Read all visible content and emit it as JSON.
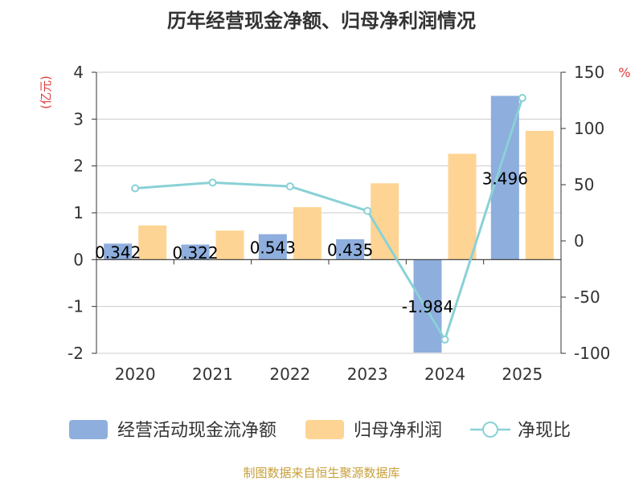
{
  "chart_data": {
    "type": "bar",
    "title": "历年经营现金净额、归母净利润情况",
    "y_left_unit": "(亿元)",
    "y_right_unit": "%",
    "categories": [
      "2020",
      "2021",
      "2022",
      "2023",
      "2024",
      "2025"
    ],
    "y_left": {
      "min": -2,
      "max": 4,
      "ticks": [
        "4",
        "3",
        "2",
        "1",
        "0",
        "-1",
        "-2"
      ]
    },
    "y_right": {
      "min": -100,
      "max": 150,
      "ticks": [
        "150",
        "100",
        "50",
        "0",
        "-50",
        "-100"
      ]
    },
    "series": [
      {
        "name": "经营活动现金流净额",
        "kind": "bar",
        "axis": "left",
        "color": "#8eaedd",
        "values": [
          0.342,
          0.322,
          0.543,
          0.435,
          -1.984,
          3.496
        ],
        "labels": [
          "0.342",
          "0.322",
          "0.543",
          "0.435",
          "-1.984",
          "3.496"
        ]
      },
      {
        "name": "归母净利润",
        "kind": "bar",
        "axis": "left",
        "color": "#fed494",
        "values": [
          0.73,
          0.62,
          1.12,
          1.63,
          2.26,
          2.75
        ]
      },
      {
        "name": "净现比",
        "kind": "line",
        "axis": "right",
        "color": "#89d1d6",
        "values": [
          46.8,
          51.9,
          48.5,
          26.7,
          -87.8,
          127.1
        ]
      }
    ],
    "legend_position": "bottom",
    "grid": true,
    "source": "制图数据来自恒生聚源数据库"
  }
}
